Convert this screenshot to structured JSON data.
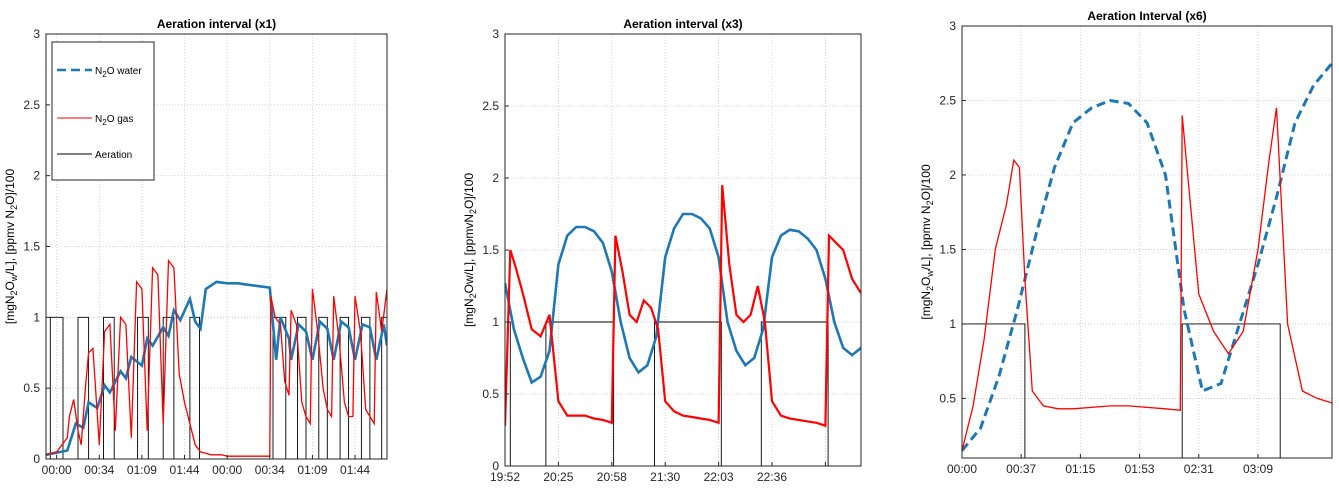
{
  "chart_data": [
    {
      "type": "line",
      "title": "Aeration interval (x1)",
      "ylabel": "[mgN2Ow/L], [ppmv N2O]/100",
      "xlabel": "",
      "ylim": [
        0,
        3
      ],
      "yticks": [
        0,
        0.5,
        1,
        1.5,
        2,
        2.5,
        3
      ],
      "ytick_labels": [
        "0",
        "0.5",
        "1",
        "1.5",
        "2",
        "2.5",
        "3"
      ],
      "xlim": [
        0,
        32
      ],
      "xticks": [
        1,
        5,
        9,
        13,
        17,
        21,
        25,
        29
      ],
      "xtick_labels": [
        "00:00",
        "00:34",
        "01:09",
        "01:44",
        "00:00",
        "00:34",
        "01:09",
        "01:44"
      ],
      "grid": true,
      "legend": {
        "placement": "top-left",
        "entries": [
          {
            "name": "N2O water",
            "name_base": "N",
            "name_sub": "2",
            "name_rest": "O water",
            "color": "#1f77b4",
            "style": "dashed"
          },
          {
            "name": "N2O gas",
            "name_base": "N",
            "name_sub": "2",
            "name_rest": "O gas",
            "color": "#ff0000",
            "style": "solid"
          },
          {
            "name": "Aeration",
            "name_base": "Aeration",
            "name_sub": "",
            "name_rest": "",
            "color": "#000000",
            "style": "solid"
          }
        ]
      },
      "series": [
        {
          "name": "N2O water",
          "color": "#1f77b4",
          "x": [
            0,
            2,
            2.8,
            3.5,
            4,
            4.8,
            5.5,
            6,
            7,
            7.5,
            8,
            9,
            9.5,
            10,
            11,
            11.5,
            12,
            12.6,
            13.5,
            14,
            14.5,
            15,
            16,
            17,
            18,
            19,
            20,
            21,
            21.3,
            21.6,
            22,
            22.8,
            23,
            23.7,
            24.4,
            25,
            25.7,
            26.4,
            27,
            27.7,
            28.4,
            29,
            29.7,
            30.4,
            31,
            31.7,
            32
          ],
          "y": [
            0.03,
            0.06,
            0.25,
            0.22,
            0.4,
            0.36,
            0.52,
            0.47,
            0.62,
            0.57,
            0.72,
            0.66,
            0.85,
            0.8,
            0.93,
            0.87,
            1.05,
            0.98,
            1.13,
            0.97,
            0.92,
            1.2,
            1.25,
            1.24,
            1.24,
            1.23,
            1.22,
            1.21,
            0.95,
            0.7,
            1.0,
            0.85,
            0.7,
            0.95,
            0.9,
            0.7,
            0.97,
            0.92,
            0.7,
            0.97,
            0.93,
            0.7,
            0.95,
            0.93,
            0.7,
            0.95,
            0.8
          ]
        },
        {
          "name": "N2O gas",
          "color": "#ff0000",
          "x": [
            0,
            1,
            2,
            2.2,
            2.6,
            3,
            3.3,
            3.7,
            4,
            4.4,
            5,
            5.5,
            6,
            6.5,
            7,
            7.5,
            8,
            8.5,
            9,
            9.5,
            10,
            10.5,
            11,
            11.5,
            12,
            12.5,
            13,
            13.5,
            14,
            14.5,
            15,
            15.5,
            16,
            16.5,
            17,
            18,
            19,
            20,
            21,
            21.1,
            21.5,
            22,
            22.4,
            22.8,
            23,
            23.5,
            24,
            24.4,
            24.8,
            25,
            25.5,
            26,
            26.4,
            26.8,
            27,
            27.5,
            28,
            28.4,
            28.8,
            29,
            29.5,
            30,
            30.4,
            30.8,
            31,
            31.5,
            32
          ],
          "y": [
            0.03,
            0.05,
            0.15,
            0.3,
            0.42,
            0.2,
            0.1,
            0.5,
            0.75,
            0.78,
            0.1,
            0.9,
            0.95,
            0.2,
            1.0,
            0.95,
            0.15,
            1.25,
            1.2,
            0.2,
            1.35,
            1.3,
            0.25,
            1.4,
            1.35,
            0.6,
            0.4,
            0.25,
            0.1,
            0.05,
            0.04,
            0.03,
            0.03,
            0.03,
            0.02,
            0.02,
            0.02,
            0.02,
            0.02,
            1.15,
            1.0,
            0.95,
            0.55,
            0.45,
            1.05,
            0.95,
            0.4,
            0.3,
            0.25,
            1.2,
            0.9,
            0.5,
            0.35,
            0.3,
            1.15,
            0.85,
            0.4,
            0.3,
            0.3,
            1.15,
            0.9,
            0.35,
            0.3,
            0.25,
            1.18,
            0.9,
            1.2
          ]
        },
        {
          "name": "Aeration",
          "color": "#000000",
          "x": [
            0,
            0.4,
            0.4,
            1.6,
            1.6,
            3,
            3,
            4,
            4,
            5.4,
            5.4,
            6.4,
            6.4,
            8.6,
            8.6,
            9.6,
            9.6,
            11,
            11,
            12,
            12,
            13.5,
            13.5,
            14.4,
            14.4,
            21.3,
            21.3,
            22.5,
            22.5,
            23.6,
            23.6,
            24.4,
            24.4,
            25.6,
            25.6,
            26.4,
            26.4,
            27.6,
            27.6,
            28.4,
            28.4,
            29.6,
            29.6,
            30.4,
            30.4,
            31.5,
            31.5,
            32
          ],
          "y": [
            0,
            0,
            1,
            1,
            0,
            0,
            1,
            1,
            0,
            0,
            1,
            1,
            0,
            0,
            1,
            1,
            0,
            0,
            1,
            1,
            0,
            0,
            1,
            1,
            0,
            0,
            1,
            1,
            0,
            0,
            1,
            1,
            0,
            0,
            1,
            1,
            0,
            0,
            1,
            1,
            0,
            0,
            1,
            1,
            0,
            0,
            1,
            1
          ]
        }
      ]
    },
    {
      "type": "line",
      "title": "Aeration interval (x3)",
      "ylabel": "[mgN2Ow/L], [ppmvN2O]/100",
      "xlabel": "",
      "ylim": [
        0,
        3
      ],
      "yticks": [
        0,
        0.5,
        1,
        1.5,
        2,
        2.5,
        3
      ],
      "ytick_labels": [
        "0",
        "0.5",
        "1",
        "1.5",
        "2",
        "2.5",
        "3"
      ],
      "xlim": [
        0,
        20
      ],
      "xticks": [
        0,
        3,
        6,
        9,
        12,
        15,
        18
      ],
      "xtick_labels": [
        "19:52",
        "20:25",
        "20:58",
        "21:30",
        "22:03",
        "22:36",
        ""
      ],
      "grid": true,
      "series": [
        {
          "name": "N2O water",
          "color": "#1f77b4",
          "x": [
            0,
            0.5,
            1,
            1.5,
            2,
            2.5,
            3,
            3.5,
            4,
            4.5,
            5,
            5.5,
            6,
            6.5,
            7,
            7.5,
            8,
            8.5,
            9,
            9.5,
            10,
            10.5,
            11,
            11.5,
            12,
            12.5,
            13,
            13.5,
            14,
            14.5,
            15,
            15.5,
            16,
            16.5,
            17,
            17.5,
            18,
            18.5,
            19,
            19.5,
            20
          ],
          "y": [
            1.27,
            0.95,
            0.75,
            0.58,
            0.62,
            0.8,
            1.4,
            1.6,
            1.66,
            1.66,
            1.63,
            1.55,
            1.35,
            1.0,
            0.75,
            0.65,
            0.7,
            0.9,
            1.45,
            1.65,
            1.75,
            1.75,
            1.72,
            1.65,
            1.45,
            1.0,
            0.8,
            0.7,
            0.75,
            0.95,
            1.45,
            1.6,
            1.64,
            1.63,
            1.58,
            1.5,
            1.3,
            1.0,
            0.82,
            0.77,
            0.82
          ]
        },
        {
          "name": "N2O gas",
          "color": "#ff0000",
          "x": [
            0,
            0.3,
            0.6,
            1,
            1.5,
            2,
            2.5,
            3,
            3.5,
            4,
            4.5,
            5,
            5.5,
            6,
            6.2,
            6.6,
            7,
            7.4,
            7.8,
            8.2,
            8.6,
            9,
            9.5,
            10,
            10.5,
            11,
            11.5,
            12,
            12.2,
            12.6,
            13,
            13.4,
            13.8,
            14.2,
            14.6,
            15,
            15.5,
            16,
            16.5,
            17,
            17.5,
            18,
            18.2,
            18.6,
            19,
            19.5,
            20
          ],
          "y": [
            0.28,
            1.5,
            1.38,
            1.2,
            0.95,
            0.9,
            1.05,
            0.45,
            0.35,
            0.35,
            0.35,
            0.33,
            0.32,
            0.3,
            1.6,
            1.35,
            1.05,
            1.0,
            1.15,
            1.1,
            0.95,
            0.45,
            0.38,
            0.35,
            0.34,
            0.33,
            0.32,
            0.3,
            1.95,
            1.4,
            1.05,
            1.0,
            1.05,
            1.25,
            1.0,
            0.45,
            0.35,
            0.33,
            0.32,
            0.31,
            0.3,
            0.28,
            1.6,
            1.55,
            1.5,
            1.3,
            1.2
          ]
        },
        {
          "name": "Aeration",
          "color": "#000000",
          "x": [
            0,
            0.3,
            0.3,
            2.3,
            2.3,
            6.1,
            6.1,
            8.4,
            8.4,
            12.15,
            12.15,
            14.4,
            14.4,
            18.15,
            18.15,
            20
          ],
          "y": [
            1,
            1,
            0,
            0,
            1,
            1,
            0,
            0,
            1,
            1,
            0,
            0,
            1,
            1,
            0,
            0
          ]
        }
      ]
    },
    {
      "type": "line",
      "title": "Aeration Interval (x6)",
      "ylabel": "[mgN2Ow/L], [ppmv N2O]/100",
      "xlabel": "",
      "ylim": [
        0.1,
        3
      ],
      "yticks": [
        0.5,
        1,
        1.5,
        2,
        2.5,
        3
      ],
      "ytick_labels": [
        "0.5",
        "1",
        "1.5",
        "2",
        "2.5",
        "3"
      ],
      "xlim": [
        0,
        10
      ],
      "xticks": [
        0,
        1.6,
        3.2,
        4.8,
        6.4,
        8.0
      ],
      "xtick_labels": [
        "00:00",
        "00:37",
        "01:15",
        "01:53",
        "02:31",
        "03:09"
      ],
      "grid": true,
      "series": [
        {
          "name": "N2O water",
          "color": "#1f77b4",
          "x": [
            0,
            0.5,
            1,
            1.5,
            2,
            2.5,
            3,
            3.5,
            4,
            4.5,
            5,
            5.5,
            6,
            6.5,
            7,
            7.5,
            8,
            8.5,
            9,
            9.5,
            10
          ],
          "y": [
            0.15,
            0.3,
            0.65,
            1.1,
            1.6,
            2.05,
            2.35,
            2.45,
            2.5,
            2.48,
            2.35,
            2.0,
            1.1,
            0.55,
            0.6,
            1.0,
            1.4,
            1.85,
            2.35,
            2.6,
            2.75
          ]
        },
        {
          "name": "N2O gas",
          "color": "#ff0000",
          "x": [
            0,
            0.3,
            0.6,
            0.9,
            1.2,
            1.4,
            1.55,
            1.7,
            1.9,
            2.2,
            2.6,
            3,
            3.5,
            4,
            4.5,
            5,
            5.5,
            5.9,
            5.95,
            6.1,
            6.4,
            6.8,
            7.2,
            7.6,
            8,
            8.3,
            8.5,
            8.8,
            9.2,
            9.6,
            10
          ],
          "y": [
            0.15,
            0.45,
            0.9,
            1.5,
            1.8,
            2.1,
            2.05,
            1.3,
            0.55,
            0.45,
            0.43,
            0.43,
            0.44,
            0.45,
            0.45,
            0.44,
            0.43,
            0.42,
            2.4,
            2.0,
            1.2,
            0.95,
            0.8,
            0.95,
            1.5,
            2.1,
            2.45,
            1.0,
            0.55,
            0.5,
            0.47
          ]
        },
        {
          "name": "Aeration",
          "color": "#000000",
          "x": [
            0,
            1.7,
            1.7,
            5.95,
            5.95,
            8.6,
            8.6,
            10
          ],
          "y": [
            1,
            1,
            0.1,
            0.1,
            1,
            1,
            0.1,
            0.1
          ]
        }
      ]
    }
  ]
}
